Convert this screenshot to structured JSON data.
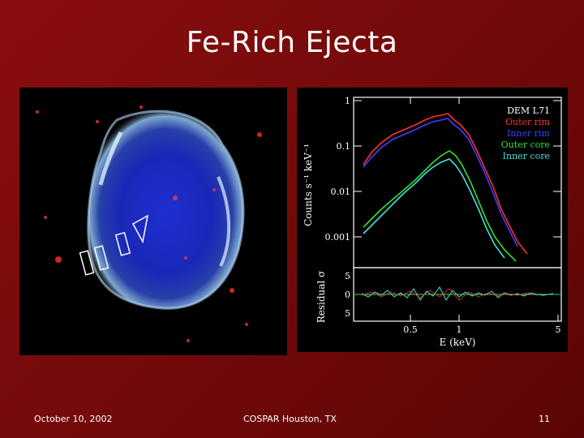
{
  "slide": {
    "title": "Fe-Rich Ejecta",
    "footer_left": "October 10, 2002",
    "footer_center": "COSPAR Houston, TX",
    "footer_right": "11"
  },
  "spectrum": {
    "object_label": "DEM L71",
    "legend": [
      {
        "name": "Outer rim",
        "color": "#ff3030"
      },
      {
        "name": "Inner rim",
        "color": "#4040ff"
      },
      {
        "name": "Outer core",
        "color": "#30e030"
      },
      {
        "name": "Inner core",
        "color": "#40e0e0"
      }
    ],
    "ylabel_top": "Counts s⁻¹ keV⁻¹",
    "ylabel_bottom": "Residual σ",
    "xlabel": "E (keV)",
    "yticks_top": [
      "1",
      "0.1",
      "0.01",
      "0.001"
    ],
    "yticks_bottom": [
      "5",
      "0",
      "5"
    ],
    "xticks": [
      "0.5",
      "1",
      "5"
    ]
  }
}
